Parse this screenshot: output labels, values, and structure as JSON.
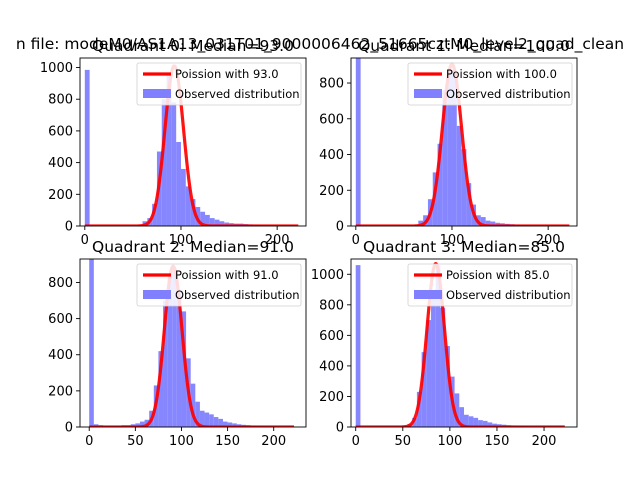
{
  "figure": {
    "suptitle": "n file: modeM0/AS1A13_031T01_9000006462_51665cztM0_level2_quad_clean"
  },
  "chart_data": [
    {
      "type": "bar",
      "title": "Quadrant 0: Median=93.0",
      "xlim": [
        -5,
        230
      ],
      "ylim": [
        0,
        1060
      ],
      "xticks": [
        0,
        100,
        200
      ],
      "yticks": [
        0,
        200,
        400,
        600,
        800,
        1000
      ],
      "bin_width": 5,
      "legend": {
        "placement": "upper-right",
        "entries": [
          "Poission with 93.0",
          "Observed distribution"
        ]
      },
      "poisson_mean": 93.0,
      "poisson_peak": 1010,
      "series": [
        {
          "name": "Observed distribution",
          "color": "#8080ff",
          "x": [
            0,
            5,
            10,
            15,
            20,
            25,
            30,
            35,
            40,
            45,
            50,
            55,
            60,
            65,
            70,
            75,
            80,
            85,
            90,
            95,
            100,
            105,
            110,
            115,
            120,
            125,
            130,
            135,
            140,
            145,
            150,
            155,
            160,
            165,
            170,
            175,
            180,
            185,
            190,
            195,
            200,
            205,
            210,
            215,
            220
          ],
          "values": [
            985,
            0,
            0,
            0,
            0,
            0,
            0,
            0,
            0,
            0,
            0,
            5,
            30,
            50,
            140,
            470,
            800,
            960,
            780,
            530,
            360,
            250,
            170,
            120,
            90,
            70,
            50,
            40,
            30,
            22,
            18,
            15,
            15,
            12,
            10,
            8,
            6,
            5,
            4,
            3,
            3,
            2,
            2,
            1,
            1
          ]
        },
        {
          "name": "Poission with 93.0",
          "color": "#ff0000",
          "type": "line"
        }
      ]
    },
    {
      "type": "bar",
      "title": "Quadrant 1: Median=100.0",
      "xlim": [
        -5,
        230
      ],
      "ylim": [
        0,
        940
      ],
      "xticks": [
        0,
        100,
        200
      ],
      "yticks": [
        0,
        200,
        400,
        600,
        800
      ],
      "bin_width": 5,
      "legend": {
        "placement": "upper-right",
        "entries": [
          "Poission with 100.0",
          "Observed distribution"
        ]
      },
      "poisson_mean": 100.0,
      "poisson_peak": 905,
      "series": [
        {
          "name": "Observed distribution",
          "color": "#8080ff",
          "x": [
            0,
            5,
            10,
            15,
            20,
            25,
            30,
            35,
            40,
            45,
            50,
            55,
            60,
            65,
            70,
            75,
            80,
            85,
            90,
            95,
            100,
            105,
            110,
            115,
            120,
            125,
            130,
            135,
            140,
            145,
            150,
            155,
            160,
            165,
            170,
            175,
            180,
            185,
            190,
            195,
            200,
            205,
            210,
            215,
            220
          ],
          "values": [
            940,
            0,
            0,
            0,
            0,
            0,
            0,
            0,
            0,
            0,
            0,
            0,
            5,
            30,
            60,
            150,
            300,
            460,
            760,
            870,
            860,
            560,
            430,
            240,
            120,
            60,
            50,
            30,
            25,
            18,
            15,
            12,
            10,
            8,
            6,
            5,
            4,
            3,
            3,
            2,
            2,
            1,
            1,
            1,
            1
          ]
        },
        {
          "name": "Poission with 100.0",
          "color": "#ff0000",
          "type": "line"
        }
      ]
    },
    {
      "type": "bar",
      "title": "Quadrant 2: Median=91.0",
      "xlim": [
        -10,
        235
      ],
      "ylim": [
        0,
        930
      ],
      "xticks": [
        0,
        50,
        100,
        150,
        200
      ],
      "yticks": [
        0,
        200,
        400,
        600,
        800
      ],
      "bin_width": 5,
      "legend": {
        "placement": "upper-right",
        "entries": [
          "Poission with 91.0",
          "Observed distribution"
        ]
      },
      "poisson_mean": 91.0,
      "poisson_peak": 890,
      "series": [
        {
          "name": "Observed distribution",
          "color": "#8080ff",
          "x": [
            0,
            5,
            10,
            15,
            20,
            25,
            30,
            35,
            40,
            45,
            50,
            55,
            60,
            65,
            70,
            75,
            80,
            85,
            90,
            95,
            100,
            105,
            110,
            115,
            120,
            125,
            130,
            135,
            140,
            145,
            150,
            155,
            160,
            165,
            170,
            175,
            180,
            185,
            190,
            195,
            200,
            205,
            210,
            215,
            220
          ],
          "values": [
            930,
            15,
            10,
            5,
            5,
            5,
            5,
            10,
            10,
            15,
            20,
            30,
            40,
            90,
            230,
            420,
            700,
            830,
            870,
            760,
            640,
            380,
            240,
            140,
            90,
            80,
            70,
            55,
            45,
            30,
            25,
            20,
            15,
            12,
            10,
            8,
            6,
            5,
            4,
            3,
            3,
            2,
            2,
            1,
            1
          ]
        },
        {
          "name": "Poission with 91.0",
          "color": "#ff0000",
          "type": "line"
        }
      ]
    },
    {
      "type": "bar",
      "title": "Quadrant 3: Median=85.0",
      "xlim": [
        -5,
        235
      ],
      "ylim": [
        0,
        1100
      ],
      "xticks": [
        0,
        50,
        100,
        150,
        200
      ],
      "yticks": [
        0,
        200,
        400,
        600,
        800,
        1000
      ],
      "bin_width": 5,
      "legend": {
        "placement": "upper-right",
        "entries": [
          "Poission with 85.0",
          "Observed distribution"
        ]
      },
      "poisson_mean": 85.0,
      "poisson_peak": 1070,
      "series": [
        {
          "name": "Observed distribution",
          "color": "#8080ff",
          "x": [
            0,
            5,
            10,
            15,
            20,
            25,
            30,
            35,
            40,
            45,
            50,
            55,
            60,
            65,
            70,
            75,
            80,
            85,
            90,
            95,
            100,
            105,
            110,
            115,
            120,
            125,
            130,
            135,
            140,
            145,
            150,
            155,
            160,
            165,
            170,
            175,
            180,
            185,
            190,
            195,
            200,
            205,
            210,
            215,
            220
          ],
          "values": [
            1060,
            0,
            0,
            0,
            0,
            0,
            0,
            0,
            0,
            0,
            10,
            20,
            60,
            230,
            490,
            700,
            860,
            1060,
            780,
            530,
            330,
            220,
            130,
            80,
            70,
            60,
            45,
            40,
            30,
            22,
            18,
            15,
            12,
            10,
            8,
            6,
            5,
            4,
            3,
            3,
            2,
            2,
            1,
            1,
            1
          ]
        },
        {
          "name": "Poission with 85.0",
          "color": "#ff0000",
          "type": "line"
        }
      ]
    }
  ]
}
